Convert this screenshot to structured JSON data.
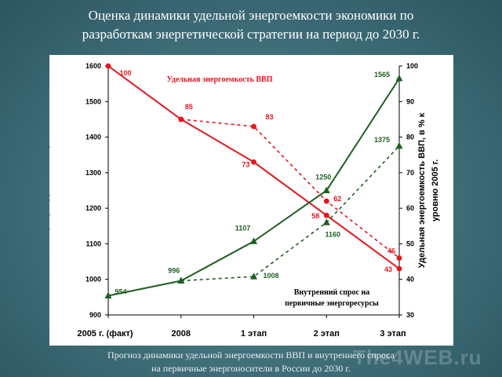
{
  "slide": {
    "title_line1": "Оценка динамики удельной энергоемкости экономики по",
    "title_line2": "разработкам энергетической стратегии на период до 2030 г.",
    "caption_line1": "Прогноз динамики удельной энергоемкости ВВП и внутреннего спроса",
    "caption_line2": "на первичные энергоносители в России до 2030 г.",
    "watermark": "The4WEB.ru"
  },
  "colors": {
    "red": "#e8141b",
    "green": "#1e5e20",
    "background": "#3f6e79"
  },
  "chart_data": {
    "type": "line",
    "categories": [
      "2005 г. (факт)",
      "2008",
      "1 этап",
      "2 этап",
      "3 этап"
    ],
    "y_left": {
      "label_line1": "Внутренний спрос на первичные",
      "label_line2": "энергоресурсы, млн т у.т.",
      "ylim": [
        900,
        1600
      ],
      "ticks": [
        900,
        1000,
        1100,
        1200,
        1300,
        1400,
        1500,
        1600
      ]
    },
    "y_right": {
      "label_line1": "Удельная энергоемкость ВВП, в % к",
      "label_line2": "уровню 2005 г.",
      "ylim": [
        30,
        100
      ],
      "ticks": [
        30,
        40,
        50,
        60,
        70,
        80,
        90,
        100
      ]
    },
    "grid": false,
    "series": [
      {
        "axis": "right",
        "color": "#e8141b",
        "style": "solid",
        "marker": "circle",
        "values": [
          100,
          85,
          73,
          58,
          43
        ],
        "labels": [
          "100",
          "85",
          "73",
          "58",
          "43"
        ]
      },
      {
        "axis": "right",
        "color": "#e8141b",
        "style": "dashed",
        "marker": "circle",
        "values": [
          null,
          85,
          83,
          62,
          46
        ],
        "labels": [
          "",
          "",
          "83",
          "62",
          "46"
        ]
      },
      {
        "axis": "left",
        "color": "#1e5e20",
        "style": "solid",
        "marker": "triangle",
        "values": [
          954,
          996,
          1107,
          1250,
          1565
        ],
        "labels": [
          "954",
          "996",
          "1107",
          "1250",
          "1565"
        ]
      },
      {
        "axis": "left",
        "color": "#1e5e20",
        "style": "dashed",
        "marker": "triangle",
        "values": [
          null,
          996,
          1008,
          1160,
          1375
        ],
        "labels": [
          "",
          "",
          "1008",
          "1160",
          "1375"
        ]
      }
    ],
    "annotations": {
      "red_series": "Удельная энергоемкость ВВП",
      "green_line1": "Внутренний спрос на",
      "green_line2": "первичные энергоресурсы"
    }
  }
}
